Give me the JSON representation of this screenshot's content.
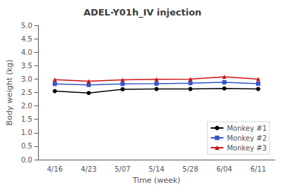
{
  "chart_data": {
    "type": "line",
    "title": "ADEL-Y01h_IV injection",
    "xlabel": "Time (week)",
    "ylabel": "Body weight (kg)",
    "categories": [
      "4/16",
      "4/23",
      "5/07",
      "5/14",
      "5/28",
      "6/04",
      "6/11"
    ],
    "series": [
      {
        "name": "Monkey #1",
        "color": "#000000",
        "marker": "circle",
        "values": [
          2.55,
          2.48,
          2.62,
          2.63,
          2.63,
          2.65,
          2.63
        ]
      },
      {
        "name": "Monkey #2",
        "color": "#3355cc",
        "marker": "square",
        "values": [
          2.82,
          2.78,
          2.82,
          2.83,
          2.85,
          2.88,
          2.83
        ]
      },
      {
        "name": "Monkey #3",
        "color": "#cc1111",
        "marker": "triangle",
        "values": [
          2.98,
          2.92,
          2.97,
          2.99,
          3.0,
          3.08,
          3.0
        ]
      }
    ],
    "ylim": [
      0.0,
      5.0
    ],
    "yticks": [
      {
        "value": 0,
        "label": "0.0"
      },
      0.5,
      {
        "value": 1,
        "label": "1.0"
      },
      1.5,
      {
        "value": 2,
        "label": "2.0"
      },
      2.5,
      {
        "value": 3,
        "label": "3.0"
      },
      3.5,
      {
        "value": 4,
        "label": "4.0"
      },
      4.5,
      {
        "value": 5,
        "label": "5.0"
      }
    ],
    "grid": false,
    "legend": "lower right"
  }
}
